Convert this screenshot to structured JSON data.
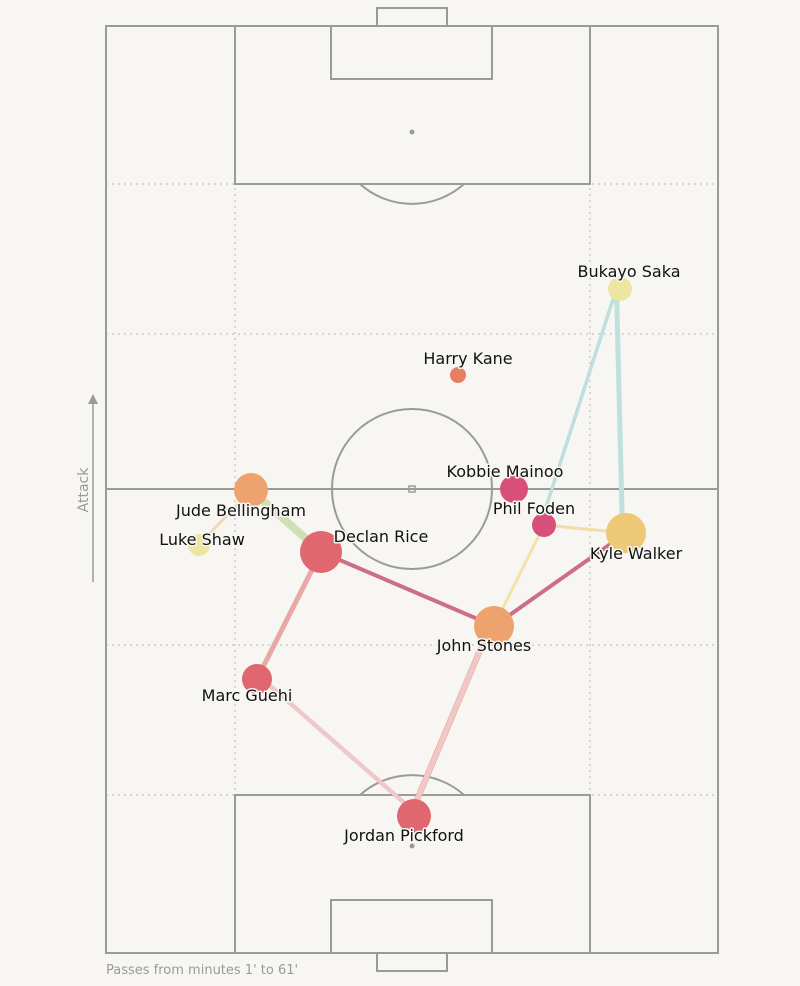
{
  "attack_label": "Attack",
  "caption": "Passes from minutes 1' to 61'",
  "players": [
    {
      "id": "bukayo-saka",
      "name": "Bukayo Saka",
      "color": "#ece6a0",
      "size": 12
    },
    {
      "id": "harry-kane",
      "name": "Harry Kane",
      "color": "#e97f62",
      "size": 8
    },
    {
      "id": "kobbie-mainoo",
      "name": "Kobbie Mainoo",
      "color": "#d84f7c",
      "size": 14
    },
    {
      "id": "phil-foden",
      "name": "Phil Foden",
      "color": "#d84f7c",
      "size": 12
    },
    {
      "id": "kyle-walker",
      "name": "Kyle Walker",
      "color": "#ecc877",
      "size": 20
    },
    {
      "id": "jude-bellingham",
      "name": "Jude Bellingham",
      "color": "#eea36e",
      "size": 17
    },
    {
      "id": "luke-shaw",
      "name": "Luke Shaw",
      "color": "#ece6a0",
      "size": 11
    },
    {
      "id": "declan-rice",
      "name": "Declan Rice",
      "color": "#e06670",
      "size": 21
    },
    {
      "id": "john-stones",
      "name": "John Stones",
      "color": "#eea36e",
      "size": 20
    },
    {
      "id": "marc-guehi",
      "name": "Marc Guehi",
      "color": "#e06670",
      "size": 15
    },
    {
      "id": "jordan-pickford",
      "name": "Jordan Pickford",
      "color": "#e06670",
      "size": 17
    }
  ],
  "passes": [
    {
      "from": "bukayo-saka",
      "to": "kyle-walker",
      "color": "#2f9c9c",
      "width": 4
    },
    {
      "from": "kyle-walker",
      "to": "bukayo-saka",
      "color": "#bfe0dc",
      "width": 5
    },
    {
      "from": "phil-foden",
      "to": "bukayo-saka",
      "color": "#2f9c9c",
      "width": 3
    },
    {
      "from": "bukayo-saka",
      "to": "phil-foden",
      "color": "#bfe0dc",
      "width": 3
    },
    {
      "from": "phil-foden",
      "to": "kyle-walker",
      "color": "#f2dcab",
      "width": 3
    },
    {
      "from": "phil-foden",
      "to": "john-stones",
      "color": "#f2e2a8",
      "width": 3
    },
    {
      "from": "kyle-walker",
      "to": "john-stones",
      "color": "#cc6d8a",
      "width": 4
    },
    {
      "from": "declan-rice",
      "to": "john-stones",
      "color": "#cc6d8a",
      "width": 4
    },
    {
      "from": "jude-bellingham",
      "to": "declan-rice",
      "color": "#cfe0b4",
      "width": 8
    },
    {
      "from": "jude-bellingham",
      "to": "luke-shaw",
      "color": "#f0d8b4",
      "width": 3
    },
    {
      "from": "declan-rice",
      "to": "marc-guehi",
      "color": "#e9a8a8",
      "width": 5
    },
    {
      "from": "marc-guehi",
      "to": "jordan-pickford",
      "color": "#cc6d8a",
      "width": 4
    },
    {
      "from": "jordan-pickford",
      "to": "marc-guehi",
      "color": "#f0c8cc",
      "width": 4
    },
    {
      "from": "jordan-pickford",
      "to": "john-stones",
      "color": "#ec9f77",
      "width": 6
    },
    {
      "from": "john-stones",
      "to": "jordan-pickford",
      "color": "#f0c8cc",
      "width": 5
    }
  ]
}
